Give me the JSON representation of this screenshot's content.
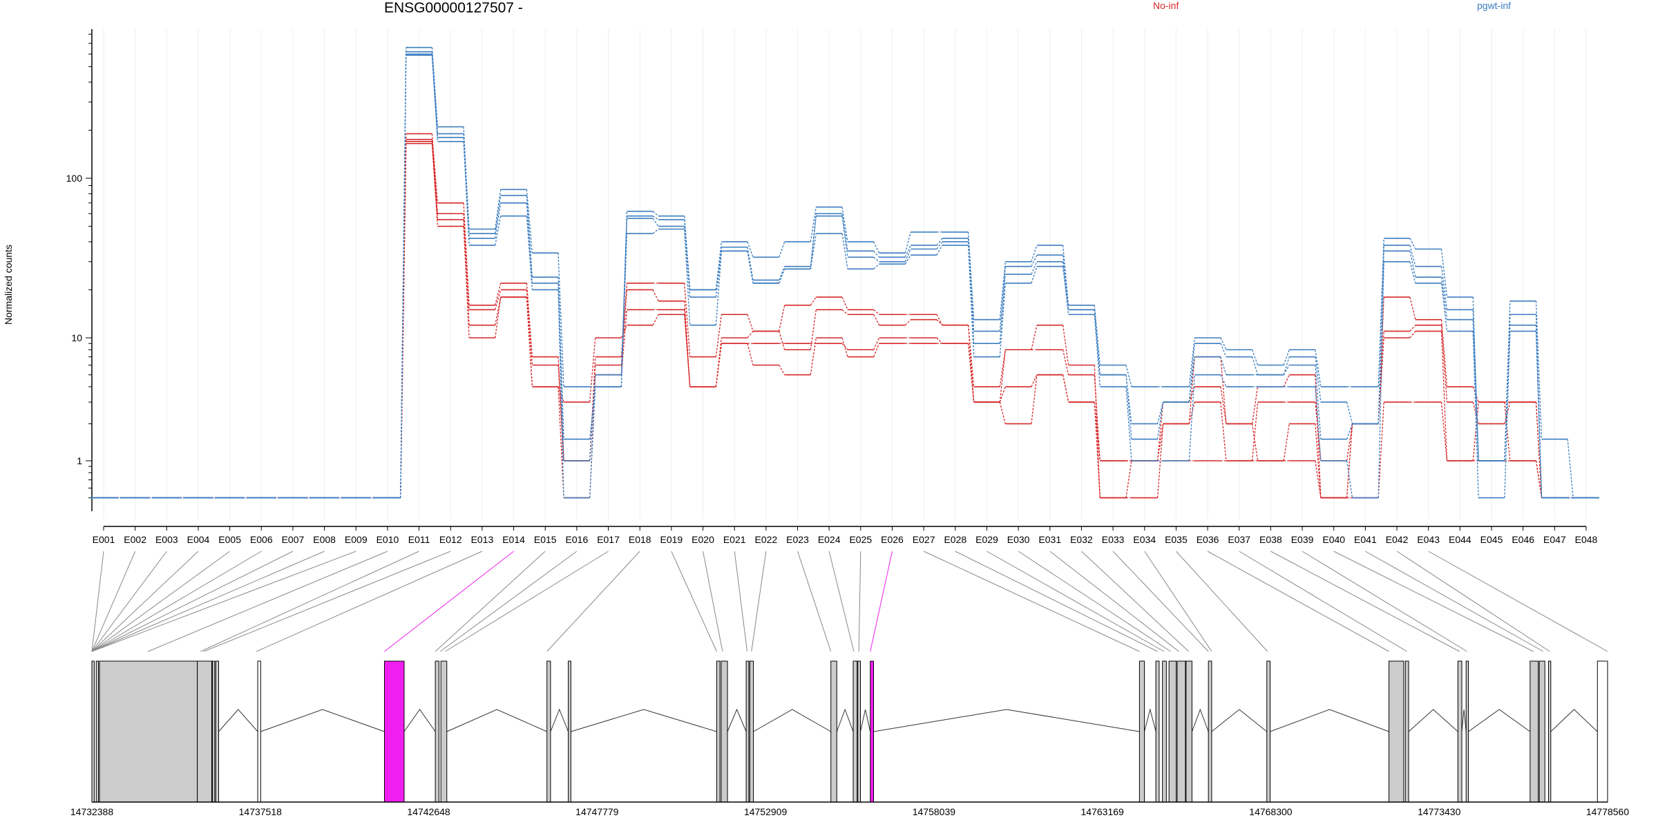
{
  "title": "ENSG00000127507 -",
  "legend": [
    {
      "label": "No-inf",
      "color": "#d62728"
    },
    {
      "label": "pgwt-inf",
      "color": "#3b7dbf"
    }
  ],
  "chart_data": {
    "type": "line",
    "ylabel": "Normalized counts",
    "yscale": "log",
    "yticks": [
      1,
      10,
      100
    ],
    "ylim": [
      0.5,
      800
    ],
    "categories": [
      "E001",
      "E002",
      "E003",
      "E004",
      "E005",
      "E006",
      "E007",
      "E008",
      "E009",
      "E010",
      "E011",
      "E012",
      "E013",
      "E014",
      "E015",
      "E016",
      "E017",
      "E018",
      "E019",
      "E020",
      "E021",
      "E022",
      "E023",
      "E024",
      "E025",
      "E026",
      "E027",
      "E028",
      "E029",
      "E030",
      "E031",
      "E032",
      "E033",
      "E034",
      "E035",
      "E036",
      "E037",
      "E038",
      "E039",
      "E040",
      "E041",
      "E042",
      "E043",
      "E044",
      "E045",
      "E046",
      "E047",
      "E048"
    ],
    "series": [
      {
        "group": "No-inf",
        "values": [
          0.5,
          0.5,
          0.5,
          0.5,
          0.5,
          0.5,
          0.5,
          0.5,
          0.5,
          0.5,
          190,
          70,
          16,
          22,
          7,
          1.0,
          7,
          22,
          22,
          7,
          14,
          11,
          16,
          18,
          15,
          14,
          14,
          12,
          4,
          8,
          12,
          6,
          0.5,
          0.5,
          2,
          7,
          2,
          4,
          5,
          0.5,
          2,
          18,
          13,
          4,
          3,
          3,
          0.5,
          0.5
        ]
      },
      {
        "group": "No-inf",
        "values": [
          0.5,
          0.5,
          0.5,
          0.5,
          0.5,
          0.5,
          0.5,
          0.5,
          0.5,
          0.5,
          175,
          60,
          15,
          20,
          6,
          1.0,
          6,
          20,
          17,
          4,
          10,
          11,
          8,
          15,
          14,
          12,
          13,
          12,
          3,
          8,
          8,
          5,
          1,
          1,
          2,
          3,
          1,
          3,
          3,
          1,
          2,
          11,
          12,
          3,
          2,
          3,
          0.5,
          0.5
        ]
      },
      {
        "group": "No-inf",
        "values": [
          0.5,
          0.5,
          0.5,
          0.5,
          0.5,
          0.5,
          0.5,
          0.5,
          0.5,
          0.5,
          170,
          55,
          12,
          18,
          4,
          0.5,
          5,
          15,
          15,
          4,
          9,
          6,
          5,
          10,
          7,
          9,
          9,
          9,
          3,
          2,
          5,
          3,
          0.5,
          1,
          3,
          4,
          2,
          1,
          2,
          0.5,
          2,
          10,
          11,
          1,
          1,
          1,
          0.5,
          0.5
        ]
      },
      {
        "group": "No-inf",
        "values": [
          0.5,
          0.5,
          0.5,
          0.5,
          0.5,
          0.5,
          0.5,
          0.5,
          0.5,
          0.5,
          165,
          50,
          10,
          18,
          4,
          3,
          10,
          12,
          14,
          4,
          9,
          9,
          9,
          9,
          8,
          10,
          10,
          9,
          3,
          4,
          5,
          3,
          1,
          1,
          1,
          1,
          1,
          1,
          1,
          0.5,
          0.5,
          3,
          3,
          1,
          3,
          1,
          0.5,
          0.5
        ]
      },
      {
        "group": "pgwt-inf",
        "values": [
          0.5,
          0.5,
          0.5,
          0.5,
          0.5,
          0.5,
          0.5,
          0.5,
          0.5,
          0.5,
          660,
          210,
          48,
          85,
          34,
          4,
          4,
          62,
          58,
          20,
          40,
          32,
          40,
          66,
          40,
          34,
          46,
          46,
          13,
          30,
          38,
          16,
          6,
          4,
          4,
          10,
          8,
          6,
          8,
          4,
          4,
          42,
          36,
          18,
          1,
          17,
          1.5,
          0.5
        ]
      },
      {
        "group": "pgwt-inf",
        "values": [
          0.5,
          0.5,
          0.5,
          0.5,
          0.5,
          0.5,
          0.5,
          0.5,
          0.5,
          0.5,
          620,
          190,
          45,
          78,
          24,
          1.5,
          4,
          58,
          55,
          20,
          37,
          23,
          28,
          60,
          35,
          32,
          38,
          42,
          11,
          28,
          33,
          15,
          5,
          2,
          3,
          9,
          7,
          5,
          7,
          3,
          2,
          38,
          28,
          15,
          1,
          14,
          0.5,
          0.5
        ]
      },
      {
        "group": "pgwt-inf",
        "values": [
          0.5,
          0.5,
          0.5,
          0.5,
          0.5,
          0.5,
          0.5,
          0.5,
          0.5,
          0.5,
          600,
          180,
          42,
          70,
          22,
          1,
          5,
          56,
          50,
          18,
          35,
          22,
          27,
          58,
          32,
          30,
          36,
          40,
          9,
          25,
          30,
          15,
          5,
          1.5,
          3,
          7,
          5,
          5,
          6,
          1.5,
          2,
          35,
          24,
          13,
          1,
          12,
          0.5,
          0.5
        ]
      },
      {
        "group": "pgwt-inf",
        "values": [
          0.5,
          0.5,
          0.5,
          0.5,
          0.5,
          0.5,
          0.5,
          0.5,
          0.5,
          0.5,
          590,
          170,
          38,
          58,
          20,
          0.5,
          4,
          45,
          48,
          12,
          35,
          22,
          27,
          45,
          27,
          29,
          33,
          38,
          7,
          22,
          28,
          14,
          4,
          1,
          1,
          5,
          4,
          4,
          4,
          1,
          0.5,
          30,
          22,
          11,
          0.5,
          11,
          0.5,
          0.5
        ]
      }
    ]
  },
  "gene_model": {
    "coord_start": 14732388,
    "coord_end": 14778560,
    "axis_labels": [
      "14732388",
      "14737518",
      "14742648",
      "14747779",
      "14752909",
      "14758039",
      "14763169",
      "14768300",
      "14773430",
      "14778560"
    ],
    "highlight_color": "#f01ef0",
    "exon_color": "#cccccc",
    "exons": [
      {
        "start": 14732388,
        "end": 14732460,
        "fill": "gray"
      },
      {
        "start": 14732520,
        "end": 14732590,
        "fill": "gray"
      },
      {
        "start": 14732620,
        "end": 14735600,
        "fill": "gray"
      },
      {
        "start": 14735600,
        "end": 14736040,
        "fill": "gray"
      },
      {
        "start": 14736060,
        "end": 14736130,
        "fill": "gray"
      },
      {
        "start": 14736160,
        "end": 14736250,
        "fill": "gray"
      },
      {
        "start": 14737440,
        "end": 14737530,
        "fill": "white"
      },
      {
        "start": 14741300,
        "end": 14741900,
        "fill": "highlight"
      },
      {
        "start": 14742850,
        "end": 14742960,
        "fill": "gray"
      },
      {
        "start": 14743020,
        "end": 14743200,
        "fill": "gray"
      },
      {
        "start": 14746250,
        "end": 14746360,
        "fill": "gray"
      },
      {
        "start": 14746900,
        "end": 14746980,
        "fill": "gray"
      },
      {
        "start": 14751420,
        "end": 14751520,
        "fill": "gray"
      },
      {
        "start": 14751560,
        "end": 14751750,
        "fill": "gray"
      },
      {
        "start": 14752320,
        "end": 14752400,
        "fill": "gray"
      },
      {
        "start": 14752430,
        "end": 14752540,
        "fill": "gray"
      },
      {
        "start": 14754900,
        "end": 14755080,
        "fill": "gray"
      },
      {
        "start": 14755580,
        "end": 14755700,
        "fill": "gray"
      },
      {
        "start": 14755720,
        "end": 14755800,
        "fill": "gray"
      },
      {
        "start": 14756100,
        "end": 14756200,
        "fill": "highlight"
      },
      {
        "start": 14764300,
        "end": 14764450,
        "fill": "gray"
      },
      {
        "start": 14764800,
        "end": 14764900,
        "fill": "gray"
      },
      {
        "start": 14765000,
        "end": 14765120,
        "fill": "gray"
      },
      {
        "start": 14765200,
        "end": 14765420,
        "fill": "gray"
      },
      {
        "start": 14765450,
        "end": 14765700,
        "fill": "gray"
      },
      {
        "start": 14765720,
        "end": 14765900,
        "fill": "gray"
      },
      {
        "start": 14766400,
        "end": 14766500,
        "fill": "gray"
      },
      {
        "start": 14768180,
        "end": 14768280,
        "fill": "gray"
      },
      {
        "start": 14771900,
        "end": 14772350,
        "fill": "gray"
      },
      {
        "start": 14772400,
        "end": 14772500,
        "fill": "gray"
      },
      {
        "start": 14774000,
        "end": 14774120,
        "fill": "gray"
      },
      {
        "start": 14774250,
        "end": 14774320,
        "fill": "gray"
      },
      {
        "start": 14776200,
        "end": 14776450,
        "fill": "gray"
      },
      {
        "start": 14776480,
        "end": 14776650,
        "fill": "gray"
      },
      {
        "start": 14776760,
        "end": 14776830,
        "fill": "gray"
      },
      {
        "start": 14778250,
        "end": 14778560,
        "fill": "white"
      }
    ],
    "connectors": [
      {
        "coord": 14732388
      },
      {
        "coord": 14732388
      },
      {
        "coord": 14732388
      },
      {
        "coord": 14732388
      },
      {
        "coord": 14732388
      },
      {
        "coord": 14732388
      },
      {
        "coord": 14732388
      },
      {
        "coord": 14732388
      },
      {
        "coord": 14732388
      },
      {
        "coord": 14734100
      },
      {
        "coord": 14735700
      },
      {
        "coord": 14735800
      },
      {
        "coord": 14737400
      },
      {
        "coord": 14741300,
        "highlight": true
      },
      {
        "coord": 14742850
      },
      {
        "coord": 14743000
      },
      {
        "coord": 14743150
      },
      {
        "coord": 14746250
      },
      {
        "coord": 14751420
      },
      {
        "coord": 14751600
      },
      {
        "coord": 14752350
      },
      {
        "coord": 14752480
      },
      {
        "coord": 14754900
      },
      {
        "coord": 14755600
      },
      {
        "coord": 14755750
      },
      {
        "coord": 14756100,
        "highlight": true
      },
      {
        "coord": 14764300
      },
      {
        "coord": 14764850
      },
      {
        "coord": 14765050
      },
      {
        "coord": 14765250
      },
      {
        "coord": 14765500
      },
      {
        "coord": 14765800
      },
      {
        "coord": 14766400
      },
      {
        "coord": 14766500
      },
      {
        "coord": 14768200
      },
      {
        "coord": 14771900
      },
      {
        "coord": 14772450
      },
      {
        "coord": 14774050
      },
      {
        "coord": 14774280
      },
      {
        "coord": 14776300
      },
      {
        "coord": 14776600
      },
      {
        "coord": 14776800
      },
      {
        "coord": 14778560
      }
    ]
  }
}
